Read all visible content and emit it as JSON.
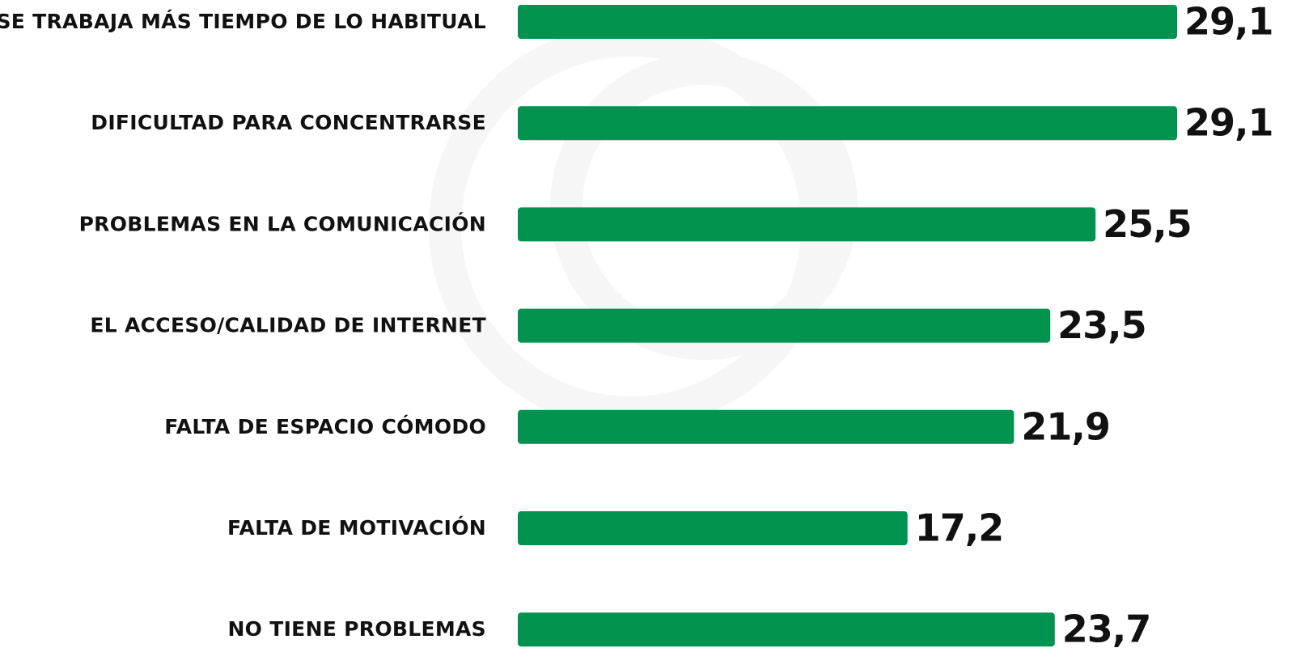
{
  "chart_data": {
    "type": "bar",
    "orientation": "horizontal",
    "categories": [
      "SE TRABAJA MÁS TIEMPO DE LO HABITUAL",
      "DIFICULTAD PARA CONCENTRARSE",
      "PROBLEMAS EN LA COMUNICACIÓN",
      "EL ACCESO/CALIDAD DE INTERNET",
      "FALTA DE ESPACIO CÓMODO",
      "FALTA DE MOTIVACIÓN",
      "NO TIENE PROBLEMAS"
    ],
    "values": [
      29.1,
      29.1,
      25.5,
      23.5,
      21.9,
      17.2,
      23.7
    ],
    "value_labels": [
      "29,1",
      "29,1",
      "25,5",
      "23,5",
      "21,9",
      "17,2",
      "23,7"
    ],
    "color": "#00934f"
  }
}
